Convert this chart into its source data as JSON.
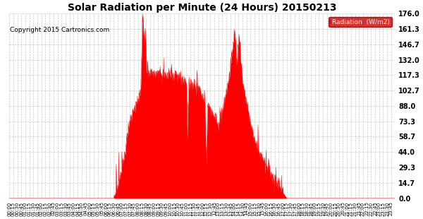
{
  "title": "Solar Radiation per Minute (24 Hours) 20150213",
  "copyright_text": "Copyright 2015 Cartronics.com",
  "bg_color": "#ffffff",
  "fill_color": "#ff0000",
  "line_color": "#ff0000",
  "dashed_line_color": "#ff0000",
  "grid_color": "#bbbbbb",
  "yticks": [
    0.0,
    14.7,
    29.3,
    44.0,
    58.7,
    73.3,
    88.0,
    102.7,
    117.3,
    132.0,
    146.7,
    161.3,
    176.0
  ],
  "ymax": 176.0,
  "ymin": 0.0,
  "total_minutes": 1440,
  "x_tick_interval": 15,
  "legend_label": "Radiation  (W/m2)",
  "legend_bg": "#cc0000",
  "legend_text_color": "#ffffff",
  "key_profile": {
    "0": 0,
    "389": 0,
    "390": 2,
    "395": 4,
    "400": 8,
    "405": 12,
    "410": 18,
    "415": 22,
    "420": 28,
    "425": 35,
    "430": 42,
    "435": 50,
    "440": 58,
    "445": 65,
    "450": 72,
    "455": 78,
    "460": 82,
    "465": 86,
    "470": 90,
    "475": 92,
    "480": 94,
    "485": 98,
    "490": 102,
    "495": 150,
    "497": 165,
    "499": 175,
    "501": 160,
    "503": 148,
    "505": 155,
    "507": 162,
    "509": 145,
    "511": 120,
    "513": 125,
    "515": 128,
    "517": 122,
    "519": 118,
    "520": 120,
    "525": 118,
    "530": 122,
    "535": 118,
    "540": 120,
    "545": 116,
    "550": 119,
    "555": 122,
    "560": 118,
    "565": 120,
    "570": 116,
    "575": 118,
    "580": 120,
    "585": 115,
    "590": 118,
    "595": 120,
    "600": 118,
    "605": 120,
    "610": 115,
    "615": 118,
    "620": 120,
    "625": 116,
    "630": 118,
    "635": 115,
    "640": 112,
    "645": 115,
    "650": 110,
    "655": 112,
    "660": 108,
    "665": 55,
    "670": 110,
    "675": 108,
    "680": 112,
    "685": 110,
    "690": 108,
    "695": 105,
    "700": 108,
    "705": 105,
    "710": 102,
    "715": 100,
    "720": 98,
    "725": 95,
    "730": 92,
    "735": 30,
    "740": 90,
    "745": 88,
    "750": 85,
    "755": 82,
    "760": 80,
    "765": 78,
    "770": 75,
    "775": 72,
    "780": 70,
    "785": 72,
    "790": 78,
    "795": 85,
    "800": 90,
    "805": 95,
    "810": 100,
    "815": 108,
    "820": 115,
    "825": 125,
    "830": 135,
    "835": 145,
    "838": 155,
    "840": 160,
    "842": 155,
    "844": 148,
    "846": 140,
    "848": 133,
    "850": 128,
    "852": 138,
    "854": 145,
    "856": 150,
    "858": 152,
    "860": 148,
    "862": 140,
    "864": 132,
    "866": 125,
    "868": 118,
    "870": 112,
    "875": 105,
    "880": 98,
    "885": 92,
    "890": 85,
    "895": 78,
    "900": 72,
    "905": 65,
    "910": 60,
    "915": 55,
    "920": 52,
    "925": 48,
    "930": 45,
    "935": 42,
    "940": 40,
    "945": 38,
    "950": 35,
    "955": 32,
    "960": 30,
    "965": 28,
    "970": 26,
    "975": 24,
    "980": 22,
    "985": 20,
    "990": 18,
    "995": 16,
    "1000": 14,
    "1005": 12,
    "1010": 10,
    "1015": 8,
    "1020": 6,
    "1025": 4,
    "1030": 2,
    "1035": 0,
    "1439": 0
  }
}
